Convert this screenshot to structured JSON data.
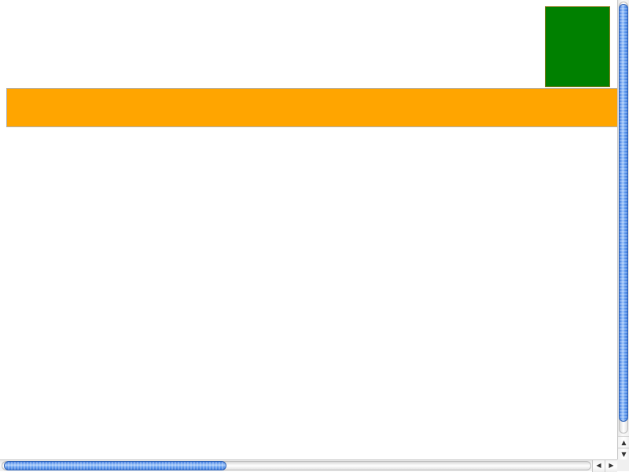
{
  "boxes": {
    "green_box_color": "#008000",
    "orange_bar_color": "#ffa500"
  },
  "scrollbars": {
    "vertical": {
      "thumb_fraction": 0.97,
      "position_fraction": 0.0,
      "up_arrow_glyph": "▲",
      "down_arrow_glyph": "▼"
    },
    "horizontal": {
      "thumb_fraction": 0.38,
      "position_fraction": 0.0,
      "left_arrow_glyph": "◀",
      "right_arrow_glyph": "▶"
    },
    "thumb_color": "#4a8ae8"
  }
}
